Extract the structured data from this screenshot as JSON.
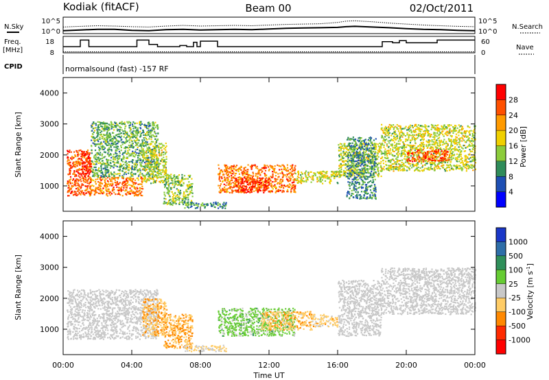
{
  "header": {
    "station": "Kodiak (fitACF)",
    "beam": "Beam 00",
    "date": "02/Oct/2011"
  },
  "noise_panel": {
    "left_label": "N.Sky",
    "right_label": "N.Search",
    "ticks": [
      "10^5",
      "10^0"
    ]
  },
  "freq_panel": {
    "left_label_1": "Freq.",
    "left_label_2": "[MHz]",
    "left_ticks": [
      "18",
      "8"
    ],
    "right_label": "Nave",
    "right_ticks": [
      "60",
      "0"
    ],
    "cpid_label": "CPID",
    "cpid_text": "normalsound (fast) -157 RF"
  },
  "power_panel": {
    "ylabel": "Slant Range [km]",
    "yticks": [
      "4000",
      "3000",
      "2000",
      "1000"
    ],
    "colorbar_label": "Power [dB]",
    "colorbar_ticks": [
      "28",
      "24",
      "20",
      "16",
      "12",
      "8",
      "4"
    ],
    "colors": [
      "#0000ff",
      "#1e4fb4",
      "#2f8c5a",
      "#8ccc3c",
      "#f0d000",
      "#ff9a00",
      "#ff5000",
      "#ff0000"
    ]
  },
  "velocity_panel": {
    "ylabel": "Slant Range [km]",
    "yticks": [
      "4000",
      "3000",
      "2000",
      "1000"
    ],
    "colorbar_label": "Velocity [m s",
    "colorbar_exp": "-1",
    "colorbar_close": "]",
    "colorbar_ticks": [
      "1000",
      "500",
      "100",
      "25",
      "-25",
      "-100",
      "-500",
      "-1000"
    ],
    "colors": [
      "#1a37c8",
      "#2e6ea8",
      "#2f8f5a",
      "#66cc33",
      "#c8c8c8",
      "#ffcc66",
      "#ff8800",
      "#ff2a00",
      "#ff0000"
    ],
    "ground_scatter_color": "#c8c8c8"
  },
  "xaxis": {
    "ticks": [
      "00:00",
      "04:00",
      "08:00",
      "12:00",
      "16:00",
      "20:00",
      "00:00"
    ],
    "label": "Time UT"
  },
  "chart_data": {
    "type": "heatmap",
    "x_units": "hours UT",
    "x_range": [
      0,
      24
    ],
    "y_units": "km",
    "y_range": [
      180,
      4500
    ],
    "power_range_db": [
      0,
      32
    ],
    "velocity_range": [
      -1000,
      1000
    ],
    "noise_sky": [
      [
        0,
        0.9
      ],
      [
        1,
        1.1
      ],
      [
        2,
        1.3
      ],
      [
        3,
        1.3
      ],
      [
        4,
        1.0
      ],
      [
        5,
        0.9
      ],
      [
        6,
        1.2
      ],
      [
        7,
        1.3
      ],
      [
        8,
        1.1
      ],
      [
        9,
        1.2
      ],
      [
        10,
        1.3
      ],
      [
        11,
        1.2
      ],
      [
        12,
        1.4
      ],
      [
        13,
        1.6
      ],
      [
        14,
        1.7
      ],
      [
        15,
        1.8
      ],
      [
        16,
        1.9
      ],
      [
        16.5,
        2.1
      ],
      [
        17,
        2.2
      ],
      [
        18,
        2.0
      ],
      [
        19,
        1.8
      ],
      [
        20,
        1.5
      ],
      [
        21,
        1.3
      ],
      [
        22,
        1.2
      ],
      [
        23,
        1.0
      ],
      [
        24,
        0.9
      ]
    ],
    "noise_search": [
      [
        0,
        2.0
      ],
      [
        1,
        2.2
      ],
      [
        2,
        2.4
      ],
      [
        3,
        2.3
      ],
      [
        4,
        2.1
      ],
      [
        5,
        2.0
      ],
      [
        6,
        2.3
      ],
      [
        7,
        2.5
      ],
      [
        8,
        2.3
      ],
      [
        9,
        2.4
      ],
      [
        10,
        2.5
      ],
      [
        11,
        2.4
      ],
      [
        12,
        2.6
      ],
      [
        13,
        2.8
      ],
      [
        14,
        2.9
      ],
      [
        15,
        3.0
      ],
      [
        16,
        3.4
      ],
      [
        16.5,
        3.8
      ],
      [
        17,
        3.9
      ],
      [
        18,
        3.6
      ],
      [
        19,
        3.2
      ],
      [
        20,
        2.9
      ],
      [
        21,
        2.6
      ],
      [
        22,
        2.4
      ],
      [
        23,
        2.2
      ],
      [
        24,
        2.1
      ]
    ],
    "frequency_mhz": [
      [
        0,
        10.5
      ],
      [
        1.0,
        10.5
      ],
      [
        1.0,
        16.5
      ],
      [
        1.5,
        16.5
      ],
      [
        1.5,
        10.5
      ],
      [
        4.3,
        10.5
      ],
      [
        4.3,
        16.5
      ],
      [
        5.0,
        16.5
      ],
      [
        5.0,
        12.5
      ],
      [
        5.5,
        12.5
      ],
      [
        5.5,
        10.5
      ],
      [
        6.8,
        10.5
      ],
      [
        6.8,
        11.5
      ],
      [
        7.2,
        11.5
      ],
      [
        7.2,
        10.5
      ],
      [
        7.6,
        10.5
      ],
      [
        7.6,
        14.5
      ],
      [
        7.8,
        14.5
      ],
      [
        7.8,
        10.5
      ],
      [
        8.0,
        10.5
      ],
      [
        8.0,
        15.5
      ],
      [
        9.0,
        15.5
      ],
      [
        9.0,
        10.5
      ],
      [
        18.6,
        10.5
      ],
      [
        18.6,
        15.0
      ],
      [
        19.2,
        15.0
      ],
      [
        19.2,
        14.0
      ],
      [
        19.6,
        14.0
      ],
      [
        19.6,
        16.0
      ],
      [
        20.0,
        16.0
      ],
      [
        20.0,
        14.0
      ],
      [
        21.8,
        14.0
      ],
      [
        21.8,
        16.5
      ],
      [
        24,
        16.5
      ]
    ],
    "nave": [
      [
        0,
        2
      ],
      [
        6,
        2
      ],
      [
        12,
        2
      ],
      [
        18,
        2
      ],
      [
        24,
        2
      ]
    ],
    "power_regions": [
      {
        "t": [
          0.2,
          1.6
        ],
        "r": [
          700,
          2200
        ],
        "power_db": 26
      },
      {
        "t": [
          1.0,
          1.6
        ],
        "r": [
          1400,
          2100
        ],
        "power_db": 28
      },
      {
        "t": [
          1.5,
          4.6
        ],
        "r": [
          700,
          1300
        ],
        "power_db": 24
      },
      {
        "t": [
          1.6,
          5.5
        ],
        "r": [
          1300,
          3100
        ],
        "power_db": 12
      },
      {
        "t": [
          4.6,
          6.0
        ],
        "r": [
          1100,
          2400
        ],
        "power_db": 16
      },
      {
        "t": [
          5.8,
          7.5
        ],
        "r": [
          400,
          1400
        ],
        "power_db": 14
      },
      {
        "t": [
          7.0,
          9.5
        ],
        "r": [
          300,
          500
        ],
        "power_db": 10
      },
      {
        "t": [
          9.0,
          13.5
        ],
        "r": [
          800,
          1700
        ],
        "power_db": 24
      },
      {
        "t": [
          10.0,
          12.0
        ],
        "r": [
          800,
          1300
        ],
        "power_db": 28
      },
      {
        "t": [
          13.5,
          16.0
        ],
        "r": [
          1100,
          1500
        ],
        "power_db": 16
      },
      {
        "t": [
          16.0,
          18.5
        ],
        "r": [
          1300,
          2400
        ],
        "power_db": 16
      },
      {
        "t": [
          16.5,
          18.2
        ],
        "r": [
          600,
          2600
        ],
        "power_db": 10
      },
      {
        "t": [
          18.5,
          24.0
        ],
        "r": [
          1500,
          3000
        ],
        "power_db": 16
      },
      {
        "t": [
          20.0,
          22.5
        ],
        "r": [
          1800,
          2200
        ],
        "power_db": 26
      }
    ],
    "velocity_regions": [
      {
        "t": [
          0.2,
          5.5
        ],
        "r": [
          700,
          2300
        ],
        "velocity": 0,
        "ground_scatter": true
      },
      {
        "t": [
          4.6,
          6.0
        ],
        "r": [
          800,
          2000
        ],
        "velocity": -300
      },
      {
        "t": [
          5.8,
          7.5
        ],
        "r": [
          400,
          1500
        ],
        "velocity": -300
      },
      {
        "t": [
          7.0,
          9.5
        ],
        "r": [
          300,
          500
        ],
        "velocity": -150
      },
      {
        "t": [
          9.0,
          13.5
        ],
        "r": [
          800,
          1700
        ],
        "velocity": 200
      },
      {
        "t": [
          11.5,
          14.5
        ],
        "r": [
          1000,
          1600
        ],
        "velocity": -250
      },
      {
        "t": [
          14.5,
          16.0
        ],
        "r": [
          1100,
          1500
        ],
        "velocity": -200
      },
      {
        "t": [
          16.0,
          18.5
        ],
        "r": [
          800,
          2600
        ],
        "velocity": 0,
        "ground_scatter": true
      },
      {
        "t": [
          18.5,
          24.0
        ],
        "r": [
          1500,
          3000
        ],
        "velocity": 0,
        "ground_scatter": true
      }
    ]
  }
}
